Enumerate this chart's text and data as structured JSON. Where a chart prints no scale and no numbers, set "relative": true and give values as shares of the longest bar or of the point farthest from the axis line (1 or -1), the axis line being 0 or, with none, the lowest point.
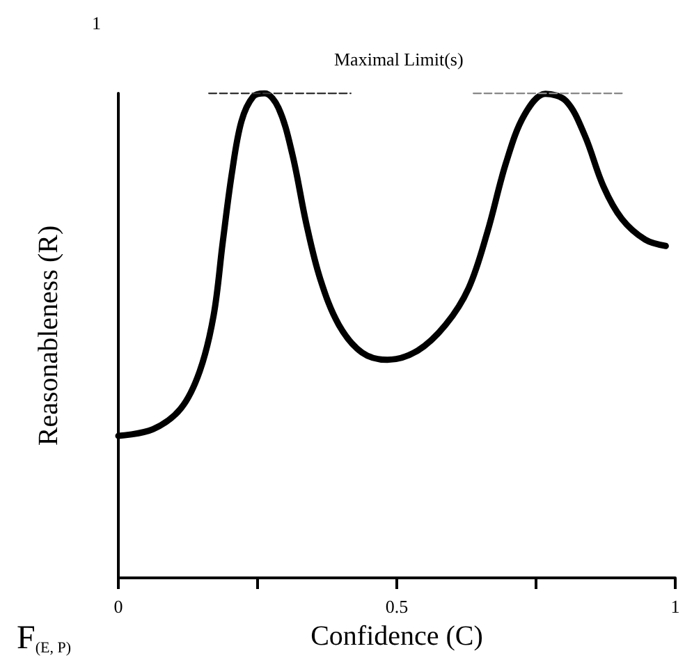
{
  "chart_data": {
    "type": "line",
    "xlabel": "Confidence (C)",
    "ylabel": "Reasonableness (R)",
    "relative": true,
    "xlim": [
      0,
      1
    ],
    "xticks": [
      0,
      {
        "value": 0.25,
        "label": null
      },
      0.5,
      {
        "value": 0.75,
        "label": null
      },
      1
    ],
    "grid": false,
    "marker": "none",
    "series": [
      {
        "color": "#000000",
        "line_style": "solid",
        "x": [
          0,
          0.0625,
          0.1125,
          0.146,
          0.171,
          0.1875,
          0.204,
          0.221,
          0.242,
          0.2625,
          0.2875,
          0.3125,
          0.3375,
          0.3625,
          0.396,
          0.4375,
          0.483,
          0.5375,
          0.5875,
          0.629,
          0.6625,
          0.696,
          0.729,
          0.767,
          0.804,
          0.8375,
          0.871,
          0.904,
          0.946,
          0.983
        ],
        "values": [
          0.293,
          0.307,
          0.35,
          0.426,
          0.541,
          0.693,
          0.836,
          0.942,
          0.993,
          1,
          0.97,
          0.874,
          0.731,
          0.617,
          0.522,
          0.465,
          0.45,
          0.469,
          0.522,
          0.598,
          0.713,
          0.856,
          0.955,
          0.999,
          0.984,
          0.913,
          0.808,
          0.741,
          0.698,
          0.685
        ]
      },
      {
        "color": "#333333",
        "line_style": "dashed",
        "x": [
          0.163,
          0.417
        ],
        "values": [
          1,
          1
        ]
      },
      {
        "color": "#888888",
        "line_style": "dashed",
        "x": [
          0.638,
          0.904
        ],
        "values": [
          1,
          1
        ]
      }
    ],
    "annotations": [
      "Maximal Limit(s)",
      "1",
      "F$_{(E, P)}$"
    ]
  }
}
